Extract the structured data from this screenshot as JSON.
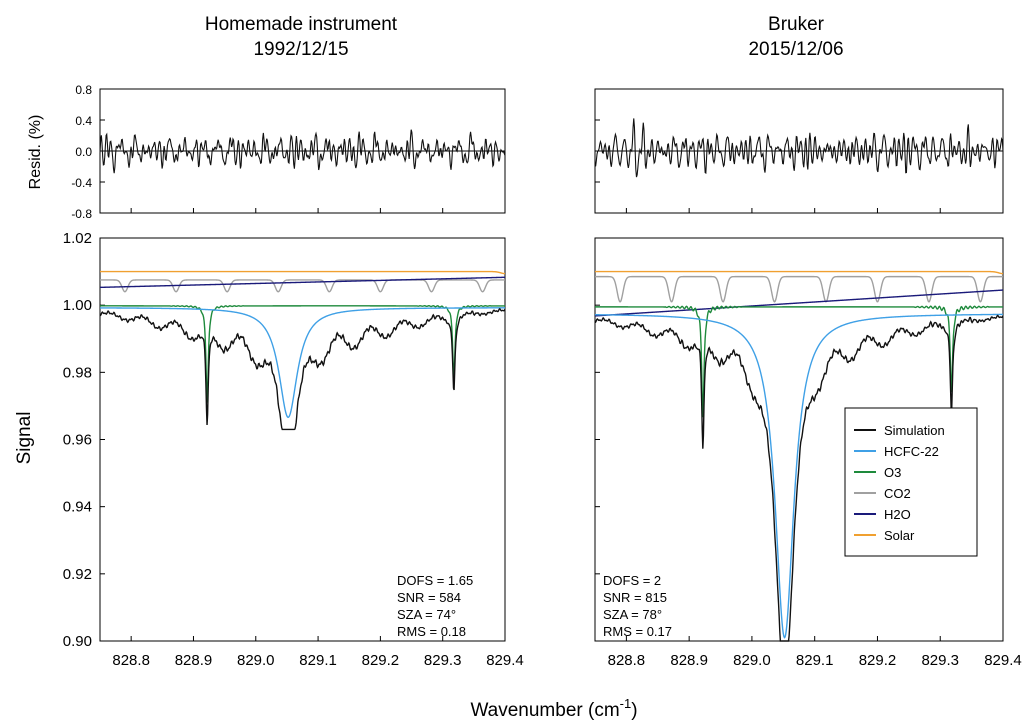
{
  "figure": {
    "ylabel_top": "Resid. (%)",
    "ylabel_bottom": "Signal",
    "xlabel": "Wavenumber (cm",
    "xlabel_sup": "-1",
    "xlabel_close": ")"
  },
  "chart_data": [
    {
      "type": "line",
      "panel": "left",
      "title_line1": "Homemade instrument",
      "title_line2": "1992/12/15",
      "xlim": [
        828.75,
        829.4
      ],
      "x_ticks": [
        828.8,
        828.9,
        829.0,
        829.1,
        829.2,
        829.3,
        829.4
      ],
      "x_tick_labels": [
        "828.8",
        "828.9",
        "829.0",
        "829.1",
        "829.2",
        "829.3",
        "829.4"
      ],
      "residual": {
        "ylabel": "Resid. (%)",
        "ylim": [
          -0.8,
          0.8
        ],
        "y_ticks": [
          -0.8,
          -0.4,
          0.0,
          0.4,
          0.8
        ],
        "y_tick_labels": [
          "-0.8",
          "-0.4",
          "0.0",
          "0.4",
          "0.8"
        ],
        "zero_line": true,
        "seed": 7,
        "amplitude": 0.17
      },
      "spectrum": {
        "ylabel": "Signal",
        "ylim": [
          0.9,
          1.02
        ],
        "y_ticks": [
          0.9,
          0.92,
          0.94,
          0.96,
          0.98,
          1.0,
          1.02
        ],
        "y_tick_labels": [
          "0.90",
          "0.92",
          "0.94",
          "0.96",
          "0.98",
          "1.00",
          "1.02"
        ],
        "series": [
          {
            "key": "solar",
            "color": "#f0a030",
            "level": 1.01,
            "dip": 0.0006,
            "dip_x": 829.4
          },
          {
            "key": "h2o",
            "color": "#1a1a7a",
            "start": 1.0053,
            "end": 1.0083
          },
          {
            "key": "co2",
            "color": "#a0a0a0",
            "base": 1.0075,
            "period": 0.082,
            "phase": 828.79,
            "depth": 0.0035
          },
          {
            "key": "o3",
            "color": "#1e8a3c",
            "base": 0.9998,
            "lines": [
              {
                "x": 828.922,
                "depth": 0.029
              },
              {
                "x": 829.318,
                "depth": 0.022
              }
            ],
            "ripple": 0.0004
          },
          {
            "key": "hcfc22",
            "color": "#3fa0e6",
            "base": 0.9993,
            "center": 829.052,
            "depth": 0.0327,
            "width": 0.018
          },
          {
            "key": "simulation",
            "color": "#111111",
            "min": 0.963
          }
        ],
        "stats": [
          "DOFS = 1.65",
          "SNR = 584",
          "SZA = 74°",
          "RMS = 0.18"
        ]
      }
    },
    {
      "type": "line",
      "panel": "right",
      "title_line1": "Bruker",
      "title_line2": "2015/12/06",
      "xlim": [
        828.75,
        829.4
      ],
      "x_ticks": [
        828.8,
        828.9,
        829.0,
        829.1,
        829.2,
        829.3,
        829.4
      ],
      "x_tick_labels": [
        "828.8",
        "828.9",
        "829.0",
        "829.1",
        "829.2",
        "829.3",
        "829.4"
      ],
      "residual": {
        "ylim": [
          -0.8,
          0.8
        ],
        "zero_line": true,
        "seed": 19,
        "amplitude": 0.17
      },
      "spectrum": {
        "ylim": [
          0.9,
          1.02
        ],
        "series": [
          {
            "key": "solar",
            "color": "#f0a030",
            "level": 1.01,
            "dip": 0.0006,
            "dip_x": 829.4
          },
          {
            "key": "h2o",
            "color": "#1a1a7a",
            "start": 0.9968,
            "end": 1.0045
          },
          {
            "key": "co2",
            "color": "#a0a0a0",
            "base": 1.0085,
            "period": 0.082,
            "phase": 828.79,
            "depth": 0.0075
          },
          {
            "key": "o3",
            "color": "#1e8a3c",
            "base": 0.9995,
            "lines": [
              {
                "x": 828.922,
                "depth": 0.033
              },
              {
                "x": 829.318,
                "depth": 0.026
              }
            ],
            "ripple": 0.0009
          },
          {
            "key": "hcfc22",
            "color": "#3fa0e6",
            "base": 0.9975,
            "center": 829.052,
            "depth": 0.0965,
            "width": 0.018
          },
          {
            "key": "simulation",
            "color": "#111111",
            "min": 0.9
          }
        ],
        "stats": [
          "DOFS = 2",
          "SNR = 815",
          "SZA = 78°",
          "RMS = 0.17"
        ]
      },
      "legend": {
        "placement": "right",
        "entries": [
          {
            "label": "Simulation",
            "color": "#111111"
          },
          {
            "label": "HCFC-22",
            "color": "#3fa0e6"
          },
          {
            "label": "O3",
            "color": "#1e8a3c"
          },
          {
            "label": "CO2",
            "color": "#a0a0a0"
          },
          {
            "label": "H2O",
            "color": "#1a1a7a"
          },
          {
            "label": "Solar",
            "color": "#f0a030"
          }
        ]
      }
    }
  ]
}
